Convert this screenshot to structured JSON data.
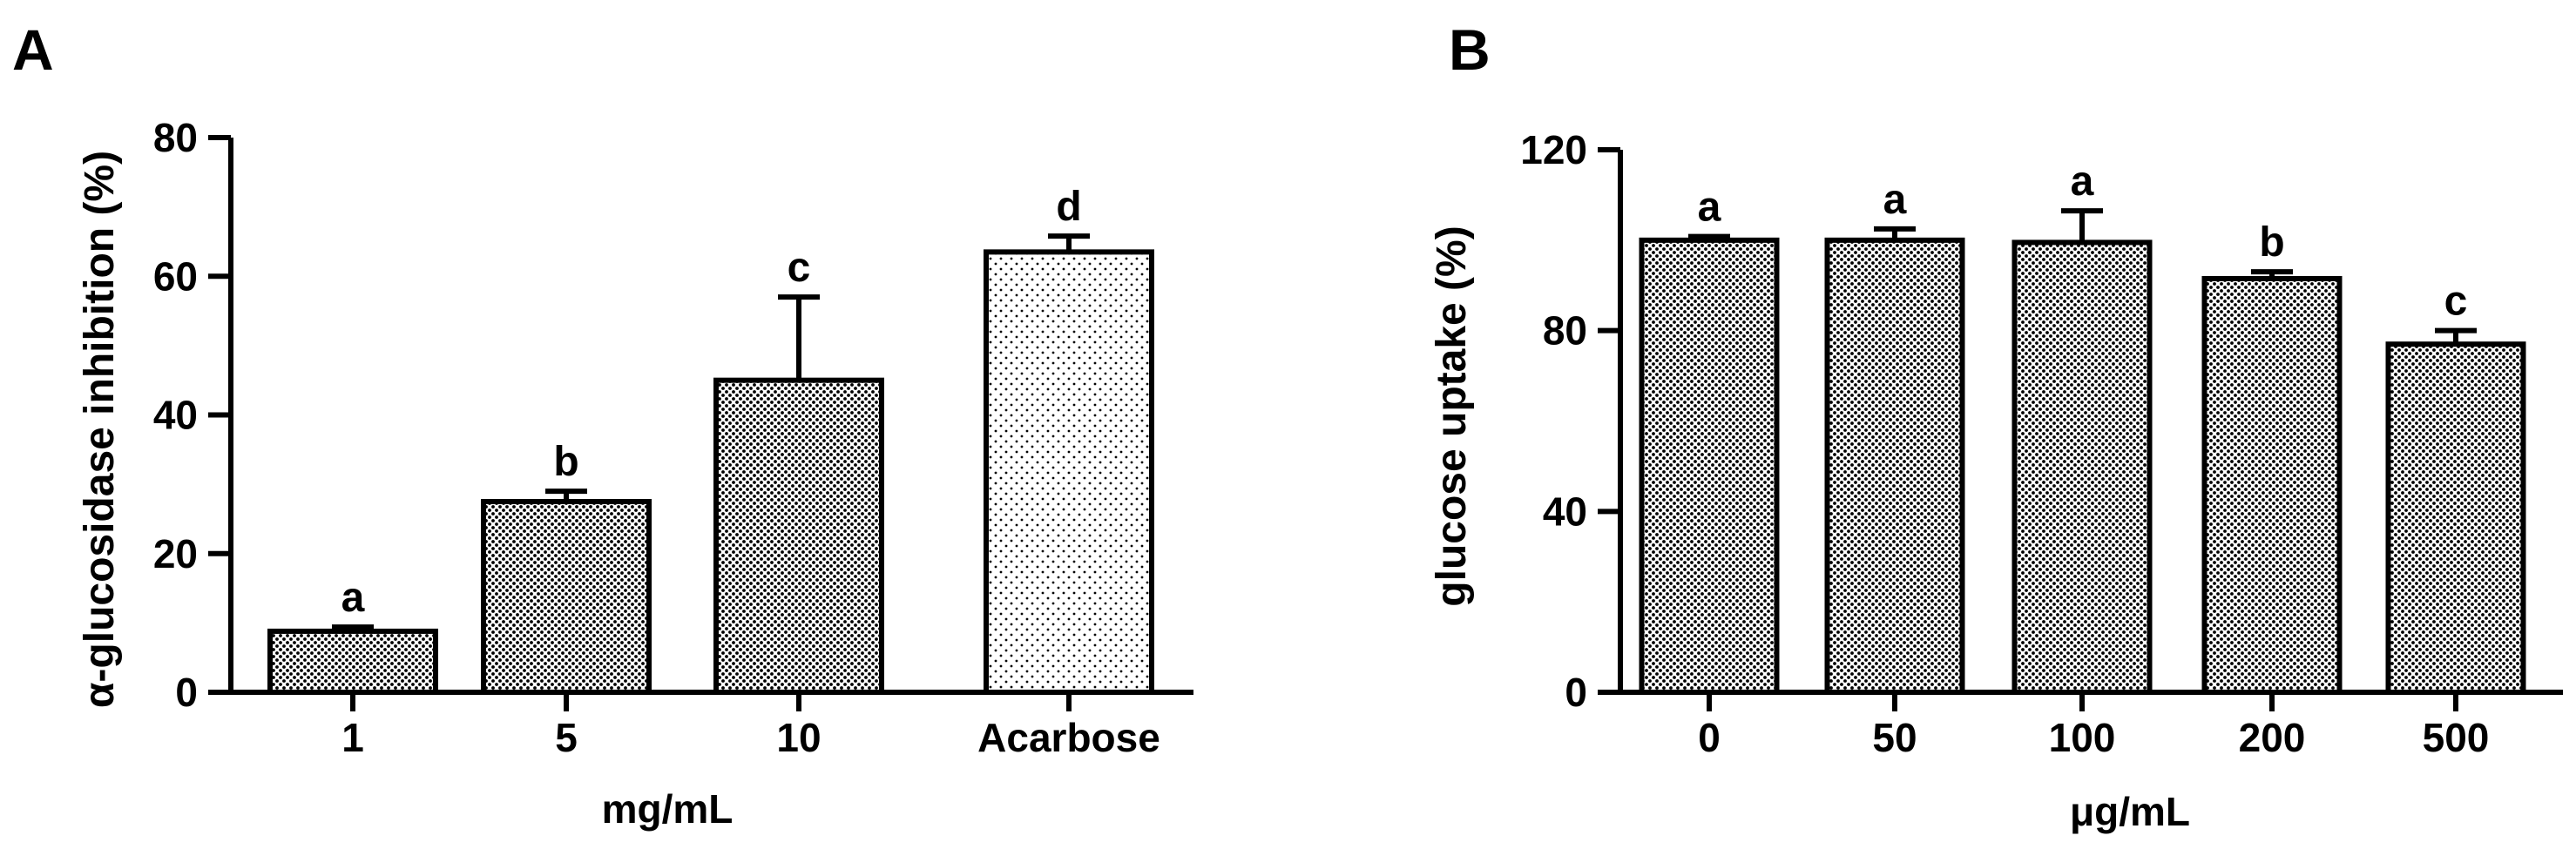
{
  "chart_data": [
    {
      "panel_label": "A",
      "type": "bar",
      "ylabel": "α-glucosidase inhibition (%)",
      "xlabel": "mg/mL",
      "categories": [
        "1",
        "5",
        "10",
        "Acarbose"
      ],
      "values": [
        8.8,
        27.5,
        45,
        63.5
      ],
      "errors": [
        0.6,
        1.5,
        12,
        2.3
      ],
      "letters": [
        "a",
        "b",
        "c",
        "d"
      ],
      "ylim": [
        0,
        80
      ],
      "yticks": [
        0,
        20,
        40,
        60,
        80
      ],
      "patterns": [
        "dense",
        "dense",
        "dense",
        "sparse"
      ]
    },
    {
      "panel_label": "B",
      "type": "bar",
      "ylabel": "glucose uptake (%)",
      "xlabel": "μg/mL",
      "categories": [
        "0",
        "50",
        "100",
        "200",
        "500"
      ],
      "values": [
        100,
        100,
        99.5,
        91.5,
        77
      ],
      "errors": [
        0.8,
        2.5,
        7,
        1.5,
        3
      ],
      "letters": [
        "a",
        "a",
        "a",
        "b",
        "c"
      ],
      "ylim": [
        0,
        120
      ],
      "yticks": [
        0,
        40,
        80,
        120
      ],
      "patterns": [
        "dense",
        "dense",
        "dense",
        "dense",
        "dense"
      ]
    }
  ]
}
